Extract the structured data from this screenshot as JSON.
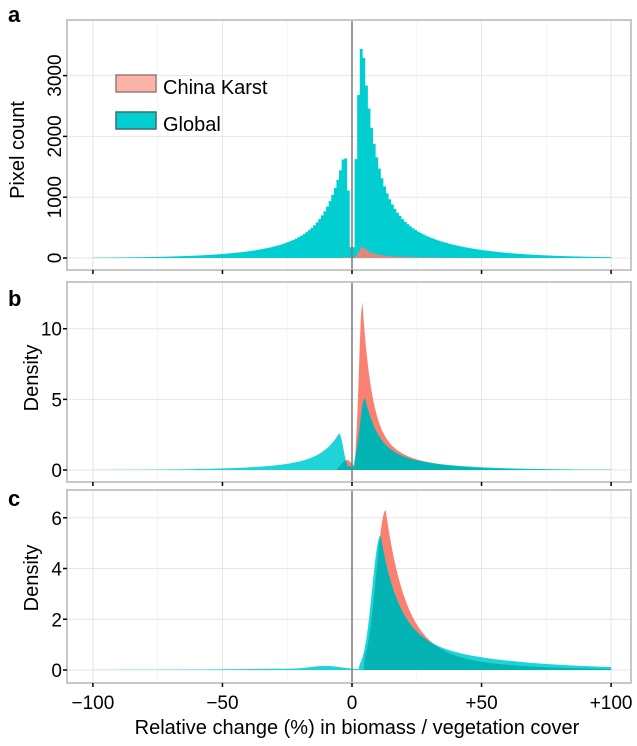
{
  "figure": {
    "xlabel": "Relative change (%) in biomass / vegetation cover",
    "x_ticks": [
      "−100",
      "−50",
      "0",
      "+50",
      "+100"
    ],
    "x_tick_values": [
      -100,
      -50,
      0,
      50,
      100
    ],
    "xlim": [
      -110,
      110
    ],
    "colors": {
      "china_karst": "#FA8072",
      "global": "#00CED1",
      "overlap": "#00AFAF",
      "grid": "#E6E6E6",
      "frame": "#C8C8C8",
      "zero_line": "#7A7A7A"
    }
  },
  "chart_data": [
    {
      "panel": "a",
      "type": "bar",
      "ylabel": "Pixel count",
      "ylim": [
        -120,
        3750
      ],
      "y_ticks": [
        "0",
        "1000",
        "2000",
        "3000"
      ],
      "y_tick_values": [
        0,
        1000,
        2000,
        3000
      ],
      "legend_position": "top-left",
      "grid": true,
      "series": [
        {
          "name": "China Karst",
          "style": "histogram",
          "peak_x": 4,
          "peak_value": 190
        },
        {
          "name": "Global",
          "style": "histogram",
          "peak_x": 4,
          "peak_value": 3550,
          "secondary_peak_x": -3,
          "secondary_peak_value": 1720
        }
      ]
    },
    {
      "panel": "b",
      "type": "area",
      "ylabel": "Density",
      "ylim": [
        -0.6,
        12.6
      ],
      "y_ticks": [
        "0",
        "5",
        "10"
      ],
      "y_tick_values": [
        0,
        5,
        10
      ],
      "grid": true,
      "series": [
        {
          "name": "China Karst",
          "style": "density",
          "peak_x": 4,
          "peak_value": 11.9
        },
        {
          "name": "Global",
          "style": "density",
          "peak_x": 5,
          "peak_value": 5.1,
          "secondary_peak_x": -5,
          "secondary_peak_value": 2.6
        }
      ]
    },
    {
      "panel": "c",
      "type": "area",
      "ylabel": "Density",
      "ylim": [
        -0.3,
        6.7
      ],
      "y_ticks": [
        "0",
        "2",
        "4",
        "6"
      ],
      "y_tick_values": [
        0,
        2,
        4,
        6
      ],
      "grid": true,
      "series": [
        {
          "name": "China Karst",
          "style": "density",
          "peak_x": 13,
          "peak_value": 6.3
        },
        {
          "name": "Global",
          "style": "density",
          "peak_x": 11,
          "peak_value": 5.3
        }
      ]
    }
  ]
}
